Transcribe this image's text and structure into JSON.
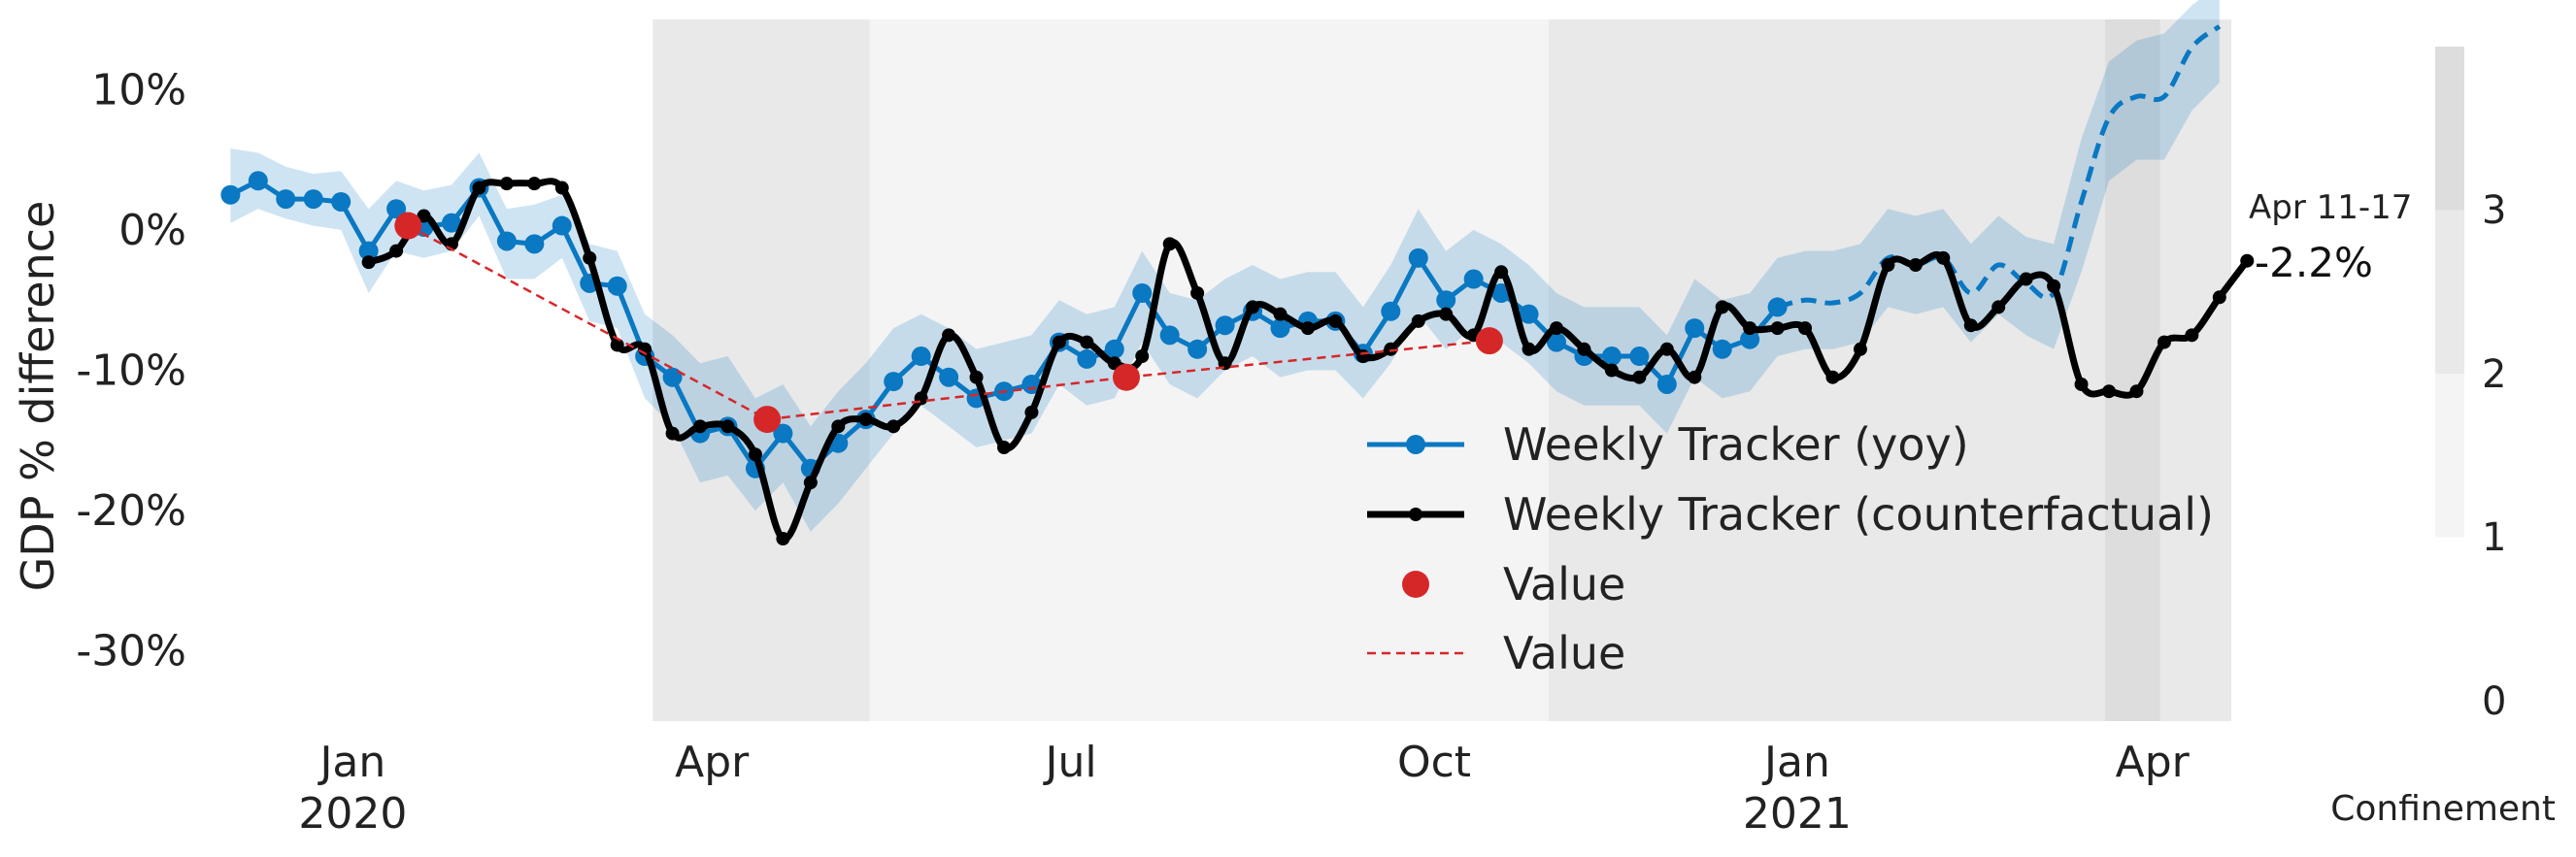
{
  "chart_data": {
    "type": "line",
    "ylabel": "GDP % difference",
    "ylim": [
      -35,
      15
    ],
    "yticks": [
      {
        "value": 10,
        "label": "10%"
      },
      {
        "value": 0,
        "label": "0%"
      },
      {
        "value": -10,
        "label": "-10%"
      },
      {
        "value": -20,
        "label": "-20%"
      },
      {
        "value": -30,
        "label": "-30%"
      }
    ],
    "xlim": [
      "2019-11-25",
      "2021-04-21"
    ],
    "xticks": [
      {
        "date": "2020-01-01",
        "label": "Jan",
        "sublabel": "2020"
      },
      {
        "date": "2020-04-01",
        "label": "Apr",
        "sublabel": ""
      },
      {
        "date": "2020-07-01",
        "label": "Jul",
        "sublabel": ""
      },
      {
        "date": "2020-10-01",
        "label": "Oct",
        "sublabel": ""
      },
      {
        "date": "2021-01-01",
        "label": "Jan",
        "sublabel": "2021"
      },
      {
        "date": "2021-04-01",
        "label": "Apr",
        "sublabel": ""
      }
    ],
    "confinement_periods": [
      {
        "start": "2020-03-17",
        "end": "2020-05-11",
        "level": 2
      },
      {
        "start": "2020-05-11",
        "end": "2020-10-30",
        "level": 1
      },
      {
        "start": "2020-10-30",
        "end": "2021-03-20",
        "level": 2
      },
      {
        "start": "2021-03-20",
        "end": "2021-04-03",
        "level": 3
      },
      {
        "start": "2021-04-03",
        "end": "2021-04-21",
        "level": 2
      }
    ],
    "confinement_scale": {
      "label": "Confinement",
      "ticks": [
        "0",
        "1",
        "2",
        "3"
      ],
      "colors": {
        "1": "#f4f4f4",
        "2": "#e9e9e9",
        "3": "#dddddd"
      }
    },
    "series": [
      {
        "name": "Weekly Tracker (yoy)",
        "color": "#0a78c2",
        "style": "solid-markers",
        "dashed_from": "2021-01-01",
        "points": [
          [
            "2019-12-01",
            2.5
          ],
          [
            "2019-12-08",
            3.5
          ],
          [
            "2019-12-15",
            2.2
          ],
          [
            "2019-12-22",
            2.2
          ],
          [
            "2019-12-29",
            2.0
          ],
          [
            "2020-01-05",
            -1.5
          ],
          [
            "2020-01-12",
            1.5
          ],
          [
            "2020-01-19",
            0.2
          ],
          [
            "2020-01-26",
            0.5
          ],
          [
            "2020-02-02",
            3.0
          ],
          [
            "2020-02-09",
            -0.8
          ],
          [
            "2020-02-16",
            -1.0
          ],
          [
            "2020-02-23",
            0.3
          ],
          [
            "2020-03-01",
            -3.8
          ],
          [
            "2020-03-08",
            -4.0
          ],
          [
            "2020-03-15",
            -9.0
          ],
          [
            "2020-03-22",
            -10.5
          ],
          [
            "2020-03-29",
            -14.5
          ],
          [
            "2020-04-05",
            -14.0
          ],
          [
            "2020-04-12",
            -17.0
          ],
          [
            "2020-04-19",
            -14.5
          ],
          [
            "2020-04-26",
            -17.0
          ],
          [
            "2020-05-03",
            -15.2
          ],
          [
            "2020-05-10",
            -13.5
          ],
          [
            "2020-05-17",
            -10.8
          ],
          [
            "2020-05-24",
            -9.0
          ],
          [
            "2020-05-31",
            -10.5
          ],
          [
            "2020-06-07",
            -12.0
          ],
          [
            "2020-06-14",
            -11.5
          ],
          [
            "2020-06-21",
            -11.0
          ],
          [
            "2020-06-28",
            -8.0
          ],
          [
            "2020-07-05",
            -9.2
          ],
          [
            "2020-07-12",
            -8.5
          ],
          [
            "2020-07-19",
            -4.5
          ],
          [
            "2020-07-26",
            -7.5
          ],
          [
            "2020-08-02",
            -8.5
          ],
          [
            "2020-08-09",
            -6.8
          ],
          [
            "2020-08-16",
            -5.8
          ],
          [
            "2020-08-23",
            -7.0
          ],
          [
            "2020-08-30",
            -6.5
          ],
          [
            "2020-09-06",
            -6.5
          ],
          [
            "2020-09-13",
            -8.8
          ],
          [
            "2020-09-20",
            -5.8
          ],
          [
            "2020-09-27",
            -2.0
          ],
          [
            "2020-10-04",
            -5.0
          ],
          [
            "2020-10-11",
            -3.5
          ],
          [
            "2020-10-18",
            -4.5
          ],
          [
            "2020-10-25",
            -6.0
          ],
          [
            "2020-11-01",
            -8.0
          ],
          [
            "2020-11-08",
            -9.0
          ],
          [
            "2020-11-15",
            -9.0
          ],
          [
            "2020-11-22",
            -9.0
          ],
          [
            "2020-11-29",
            -11.0
          ],
          [
            "2020-12-06",
            -7.0
          ],
          [
            "2020-12-13",
            -8.5
          ],
          [
            "2020-12-20",
            -7.8
          ],
          [
            "2020-12-27",
            -5.5
          ],
          [
            "2021-01-03",
            -5.0
          ],
          [
            "2021-01-10",
            -5.2
          ],
          [
            "2021-01-17",
            -4.5
          ],
          [
            "2021-01-24",
            -2.0
          ],
          [
            "2021-01-31",
            -2.5
          ],
          [
            "2021-02-07",
            -2.0
          ],
          [
            "2021-02-14",
            -4.5
          ],
          [
            "2021-02-21",
            -2.5
          ],
          [
            "2021-02-28",
            -3.8
          ],
          [
            "2021-03-07",
            -4.5
          ],
          [
            "2021-03-14",
            2.0
          ],
          [
            "2021-03-21",
            8.0
          ],
          [
            "2021-03-28",
            9.5
          ],
          [
            "2021-04-04",
            9.5
          ],
          [
            "2021-04-11",
            13.0
          ],
          [
            "2021-04-18",
            14.5
          ]
        ],
        "band": [
          [
            "2019-12-01",
            0.5,
            5.8
          ],
          [
            "2019-12-08",
            1.5,
            5.5
          ],
          [
            "2019-12-15",
            0.8,
            4.5
          ],
          [
            "2019-12-22",
            0.3,
            4.0
          ],
          [
            "2019-12-29",
            0.0,
            4.2
          ],
          [
            "2020-01-05",
            -4.5,
            1.5
          ],
          [
            "2020-01-12",
            -1.5,
            3.5
          ],
          [
            "2020-01-19",
            -2.0,
            2.8
          ],
          [
            "2020-01-26",
            -1.5,
            3.2
          ],
          [
            "2020-02-02",
            1.0,
            5.5
          ],
          [
            "2020-02-09",
            -3.5,
            1.5
          ],
          [
            "2020-02-16",
            -3.5,
            1.8
          ],
          [
            "2020-02-23",
            -2.0,
            2.5
          ],
          [
            "2020-03-01",
            -6.5,
            -1.0
          ],
          [
            "2020-03-08",
            -7.0,
            -1.5
          ],
          [
            "2020-03-15",
            -12.0,
            -6.0
          ],
          [
            "2020-03-22",
            -14.0,
            -7.5
          ],
          [
            "2020-03-29",
            -18.0,
            -9.5
          ],
          [
            "2020-04-05",
            -17.5,
            -9.0
          ],
          [
            "2020-04-12",
            -20.0,
            -12.0
          ],
          [
            "2020-04-19",
            -18.0,
            -11.0
          ],
          [
            "2020-04-26",
            -21.5,
            -14.0
          ],
          [
            "2020-05-03",
            -19.5,
            -11.5
          ],
          [
            "2020-05-10",
            -17.0,
            -9.5
          ],
          [
            "2020-05-17",
            -14.5,
            -7.0
          ],
          [
            "2020-05-24",
            -12.5,
            -6.0
          ],
          [
            "2020-05-31",
            -14.0,
            -7.0
          ],
          [
            "2020-06-07",
            -15.5,
            -8.5
          ],
          [
            "2020-06-14",
            -15.0,
            -8.0
          ],
          [
            "2020-06-21",
            -14.5,
            -7.5
          ],
          [
            "2020-06-28",
            -11.0,
            -5.0
          ],
          [
            "2020-07-05",
            -12.5,
            -6.0
          ],
          [
            "2020-07-12",
            -12.0,
            -5.5
          ],
          [
            "2020-07-19",
            -8.0,
            -1.5
          ],
          [
            "2020-07-26",
            -11.0,
            -4.5
          ],
          [
            "2020-08-02",
            -12.0,
            -5.0
          ],
          [
            "2020-08-09",
            -10.0,
            -3.5
          ],
          [
            "2020-08-16",
            -9.0,
            -2.5
          ],
          [
            "2020-08-23",
            -10.5,
            -3.5
          ],
          [
            "2020-08-30",
            -10.0,
            -3.0
          ],
          [
            "2020-09-06",
            -10.0,
            -3.0
          ],
          [
            "2020-09-13",
            -12.0,
            -5.5
          ],
          [
            "2020-09-20",
            -9.5,
            -2.5
          ],
          [
            "2020-09-27",
            -6.0,
            1.5
          ],
          [
            "2020-10-04",
            -8.5,
            -1.5
          ],
          [
            "2020-10-11",
            -7.0,
            0.0
          ],
          [
            "2020-10-18",
            -8.0,
            -1.0
          ],
          [
            "2020-10-25",
            -9.5,
            -2.5
          ],
          [
            "2020-11-01",
            -11.5,
            -4.5
          ],
          [
            "2020-11-08",
            -12.5,
            -5.5
          ],
          [
            "2020-11-15",
            -12.5,
            -5.5
          ],
          [
            "2020-11-22",
            -12.5,
            -5.5
          ],
          [
            "2020-11-29",
            -14.5,
            -7.5
          ],
          [
            "2020-12-06",
            -10.5,
            -3.5
          ],
          [
            "2020-12-13",
            -12.0,
            -5.0
          ],
          [
            "2020-12-20",
            -11.5,
            -4.5
          ],
          [
            "2020-12-27",
            -9.0,
            -2.0
          ],
          [
            "2021-01-03",
            -8.5,
            -1.5
          ],
          [
            "2021-01-10",
            -8.5,
            -1.5
          ],
          [
            "2021-01-17",
            -8.0,
            -1.0
          ],
          [
            "2021-01-24",
            -5.5,
            1.5
          ],
          [
            "2021-01-31",
            -6.0,
            1.0
          ],
          [
            "2021-02-07",
            -5.5,
            1.5
          ],
          [
            "2021-02-14",
            -8.0,
            -1.0
          ],
          [
            "2021-02-21",
            -6.0,
            1.0
          ],
          [
            "2021-02-28",
            -7.5,
            -0.5
          ],
          [
            "2021-03-07",
            -8.5,
            -1.0
          ],
          [
            "2021-03-14",
            -3.0,
            6.5
          ],
          [
            "2021-03-21",
            3.5,
            12.0
          ],
          [
            "2021-03-28",
            5.0,
            13.5
          ],
          [
            "2021-04-04",
            5.0,
            14.0
          ],
          [
            "2021-04-11",
            8.5,
            16.0
          ],
          [
            "2021-04-18",
            10.5,
            17.5
          ]
        ]
      },
      {
        "name": "Weekly Tracker (counterfactual)",
        "color": "#000000",
        "style": "solid-small-markers",
        "points": [
          [
            "2020-01-05",
            -2.3
          ],
          [
            "2020-01-12",
            -1.5
          ],
          [
            "2020-01-19",
            1.0
          ],
          [
            "2020-01-26",
            -1.0
          ],
          [
            "2020-02-02",
            3.0
          ],
          [
            "2020-02-09",
            3.3
          ],
          [
            "2020-02-16",
            3.3
          ],
          [
            "2020-02-23",
            3.0
          ],
          [
            "2020-03-01",
            -2.0
          ],
          [
            "2020-03-08",
            -8.2
          ],
          [
            "2020-03-15",
            -8.5
          ],
          [
            "2020-03-22",
            -14.5
          ],
          [
            "2020-03-29",
            -14.0
          ],
          [
            "2020-04-05",
            -14.0
          ],
          [
            "2020-04-12",
            -16.0
          ],
          [
            "2020-04-19",
            -22.0
          ],
          [
            "2020-04-26",
            -18.0
          ],
          [
            "2020-05-03",
            -14.0
          ],
          [
            "2020-05-10",
            -13.5
          ],
          [
            "2020-05-17",
            -14.0
          ],
          [
            "2020-05-24",
            -12.0
          ],
          [
            "2020-05-31",
            -7.5
          ],
          [
            "2020-06-07",
            -10.5
          ],
          [
            "2020-06-14",
            -15.5
          ],
          [
            "2020-06-21",
            -13.0
          ],
          [
            "2020-06-28",
            -8.0
          ],
          [
            "2020-07-05",
            -8.0
          ],
          [
            "2020-07-12",
            -9.5
          ],
          [
            "2020-07-19",
            -9.0
          ],
          [
            "2020-07-26",
            -1.0
          ],
          [
            "2020-08-02",
            -4.5
          ],
          [
            "2020-08-09",
            -9.5
          ],
          [
            "2020-08-16",
            -5.5
          ],
          [
            "2020-08-23",
            -6.0
          ],
          [
            "2020-08-30",
            -7.0
          ],
          [
            "2020-09-06",
            -6.5
          ],
          [
            "2020-09-13",
            -9.0
          ],
          [
            "2020-09-20",
            -8.5
          ],
          [
            "2020-09-27",
            -6.5
          ],
          [
            "2020-10-04",
            -6.0
          ],
          [
            "2020-10-11",
            -7.5
          ],
          [
            "2020-10-18",
            -3.0
          ],
          [
            "2020-10-25",
            -8.5
          ],
          [
            "2020-11-01",
            -7.0
          ],
          [
            "2020-11-08",
            -8.5
          ],
          [
            "2020-11-15",
            -10.0
          ],
          [
            "2020-11-22",
            -10.5
          ],
          [
            "2020-11-29",
            -8.5
          ],
          [
            "2020-12-06",
            -10.5
          ],
          [
            "2020-12-13",
            -5.5
          ],
          [
            "2020-12-20",
            -7.0
          ],
          [
            "2020-12-27",
            -7.0
          ],
          [
            "2021-01-03",
            -7.0
          ],
          [
            "2021-01-10",
            -10.5
          ],
          [
            "2021-01-17",
            -8.5
          ],
          [
            "2021-01-24",
            -2.5
          ],
          [
            "2021-01-31",
            -2.5
          ],
          [
            "2021-02-07",
            -2.0
          ],
          [
            "2021-02-14",
            -6.8
          ],
          [
            "2021-02-21",
            -5.5
          ],
          [
            "2021-02-28",
            -3.5
          ],
          [
            "2021-03-07",
            -4.0
          ],
          [
            "2021-03-14",
            -11.0
          ],
          [
            "2021-03-21",
            -11.5
          ],
          [
            "2021-03-28",
            -11.5
          ],
          [
            "2021-04-04",
            -8.0
          ],
          [
            "2021-04-11",
            -7.5
          ],
          [
            "2021-04-18",
            -4.8
          ],
          [
            "2021-04-25",
            -2.2
          ]
        ]
      },
      {
        "name": "Value",
        "color": "#d62728",
        "style": "markers",
        "points": [
          [
            "2020-01-15",
            0.3
          ],
          [
            "2020-04-15",
            -13.5
          ],
          [
            "2020-07-15",
            -10.5
          ],
          [
            "2020-10-15",
            -7.9
          ]
        ]
      },
      {
        "name": "Value",
        "color": "#d62728",
        "style": "dashed-line",
        "points": [
          [
            "2020-01-15",
            0.3
          ],
          [
            "2020-04-15",
            -13.5
          ],
          [
            "2020-07-15",
            -10.5
          ],
          [
            "2020-10-15",
            -7.9
          ]
        ]
      }
    ],
    "annotation": {
      "date_label": "Apr 11-17",
      "value_label": "-2.2%"
    },
    "legend_position": "lower-right"
  }
}
